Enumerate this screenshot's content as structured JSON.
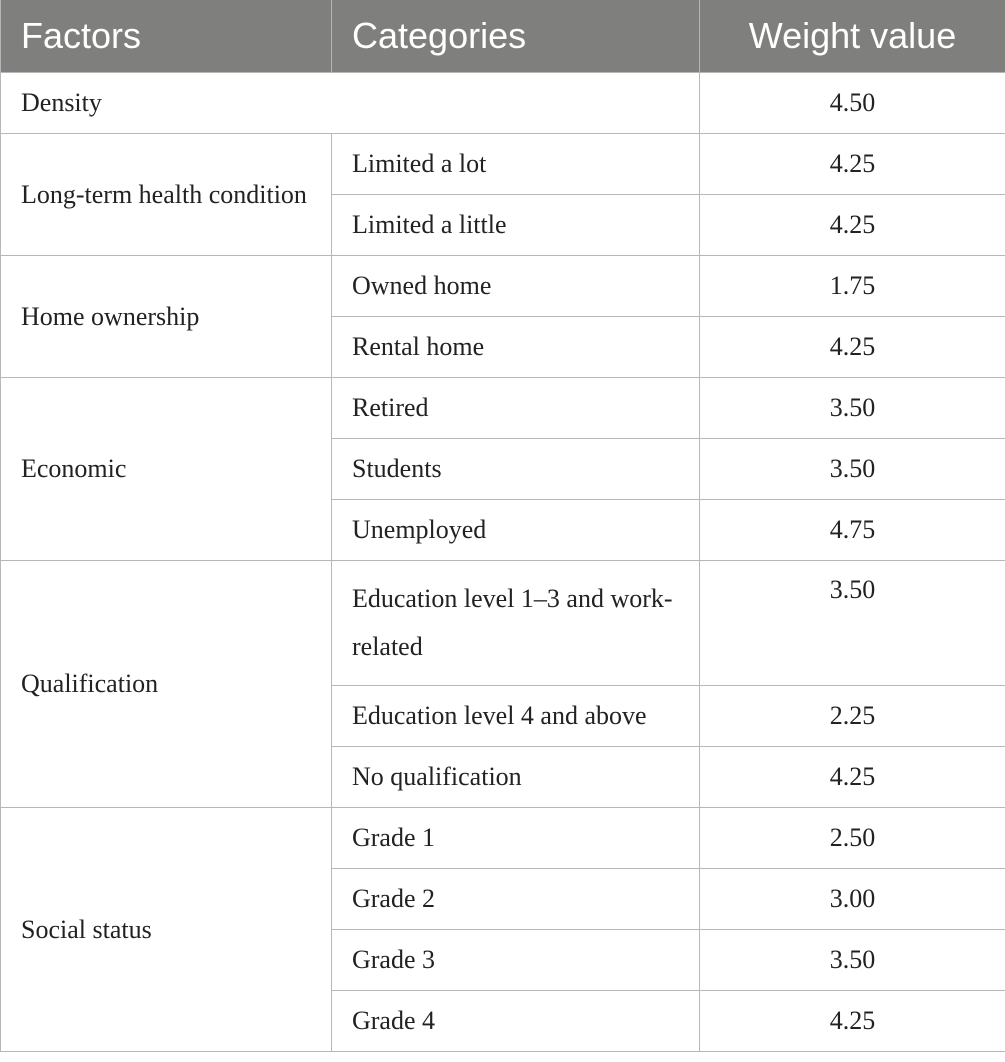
{
  "headers": {
    "factors": "Factors",
    "categories": "Categories",
    "weight": "Weight value"
  },
  "rows": {
    "density": {
      "factor": "Density",
      "value": "4.50"
    },
    "health": {
      "factor": "Long-term health condition",
      "items": [
        {
          "category": "Limited a lot",
          "value": "4.25"
        },
        {
          "category": "Limited a little",
          "value": "4.25"
        }
      ]
    },
    "home": {
      "factor": "Home ownership",
      "items": [
        {
          "category": "Owned home",
          "value": "1.75"
        },
        {
          "category": "Rental home",
          "value": "4.25"
        }
      ]
    },
    "economic": {
      "factor": "Economic",
      "items": [
        {
          "category": "Retired",
          "value": "3.50"
        },
        {
          "category": "Students",
          "value": "3.50"
        },
        {
          "category": "Unemployed",
          "value": "4.75"
        }
      ]
    },
    "qualification": {
      "factor": "Qualification",
      "items": [
        {
          "category": "Education level 1–3 and work-related",
          "value": "3.50"
        },
        {
          "category": "Education level 4 and above",
          "value": "2.25"
        },
        {
          "category": "No qualification",
          "value": "4.25"
        }
      ]
    },
    "social": {
      "factor": "Social status",
      "items": [
        {
          "category": "Grade 1",
          "value": "2.50"
        },
        {
          "category": "Grade 2",
          "value": "3.00"
        },
        {
          "category": "Grade 3",
          "value": "3.50"
        },
        {
          "category": "Grade 4",
          "value": "4.25"
        }
      ]
    }
  }
}
